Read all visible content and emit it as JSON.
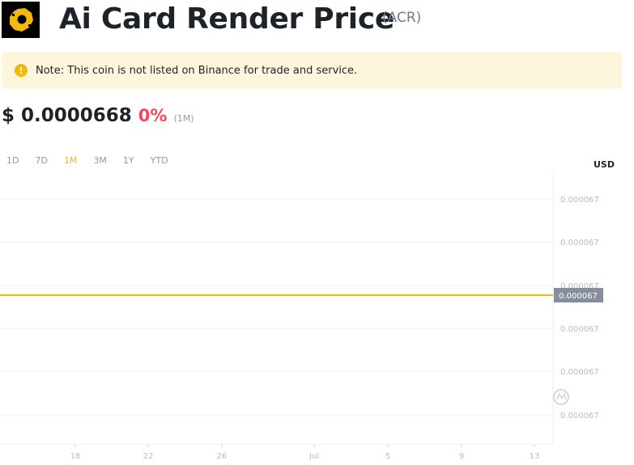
{
  "header": {
    "title": "Ai Card Render Price",
    "ticker": "(ACR)"
  },
  "note": {
    "icon": "exclamation-icon",
    "text": "Note: This coin is not listed on Binance for trade and service."
  },
  "price": {
    "value": "$ 0.0000668",
    "change": "0%",
    "period": "(1M)"
  },
  "tabs": [
    {
      "label": "1D"
    },
    {
      "label": "7D"
    },
    {
      "label": "1M"
    },
    {
      "label": "3M"
    },
    {
      "label": "1Y"
    },
    {
      "label": "YTD"
    }
  ],
  "active_tab": "1M",
  "currency": "USD",
  "colors": {
    "accent": "#f0b90b",
    "negative": "#f6465d",
    "note_bg": "#fdf6dc"
  },
  "chart_data": {
    "type": "line",
    "x_ticks": [
      "18",
      "22",
      "26",
      "Jul",
      "5",
      "9",
      "13"
    ],
    "y_ticks": [
      "0.000067",
      "0.000067",
      "0.000067",
      "0.000067",
      "0.000067",
      "0.000067"
    ],
    "current_label": "0.000067",
    "series": [
      {
        "values": [
          6.68e-05,
          6.68e-05,
          6.68e-05,
          6.68e-05,
          6.68e-05,
          6.68e-05,
          6.68e-05,
          6.68e-05
        ]
      }
    ],
    "grid": true,
    "watermark": "coinmarketcap-icon"
  }
}
